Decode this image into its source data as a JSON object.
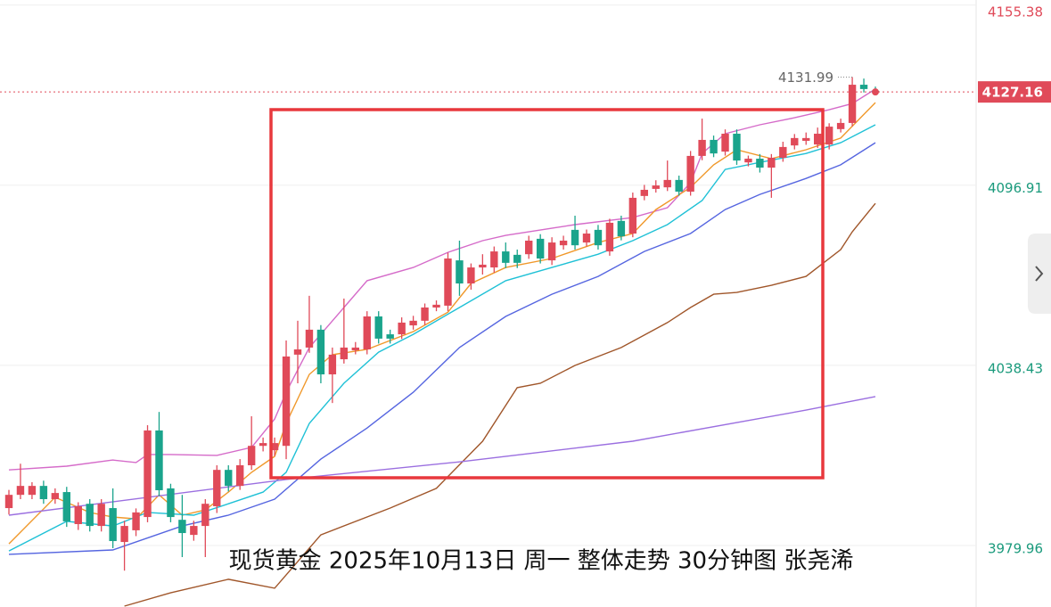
{
  "chart_data": {
    "type": "candlestick",
    "caption": "现货黄金 2025年10月13日 周一  整体走势 30分钟图 张尧浠",
    "up_color": "#e04a59",
    "down_color": "#1aa48c",
    "ylim": [
      3960,
      4157
    ],
    "yticks": [
      3979.96,
      4038.43,
      4096.91,
      4155.38
    ],
    "grid": true,
    "last_price": 4127.16,
    "open": [
      3992.1,
      3996.4,
      3996.4,
      3999.3,
      3995.0,
      3997.3,
      3986.9,
      3993.5,
      3986.3,
      3992.1,
      3981.1,
      3984.9,
      3989.2,
      4017.3,
      3998.5,
      3988.3,
      3983.4,
      3986.3,
      3992.7,
      4004.5,
      3999.3,
      4006.0,
      4012.3,
      4010.9,
      4012.3,
      4041.9,
      4044.2,
      4050.0,
      4035.5,
      4040.4,
      4043.3,
      4043.6,
      4054.3,
      4048.5,
      4048.5,
      4051.4,
      4052.9,
      4057.2,
      4057.8,
      4072.5,
      4065.0,
      4070.2,
      4070.2,
      4075.4,
      4074.3,
      4074.5,
      4079.5,
      4072.5,
      4077.4,
      4082.4,
      4078.3,
      4082.4,
      4075.4,
      4085.3,
      4081.2,
      4093.4,
      4095.7,
      4096.2,
      4098.6,
      4094.8,
      4106.4,
      4111.6,
      4107.8,
      4113.6,
      4104.3,
      4105.5,
      4102.6,
      4105.8,
      4109.8,
      4111.3,
      4110.1,
      4110.1,
      4115.1,
      4117.1,
      4129.5,
      4127.5
    ],
    "high": [
      3998.0,
      4006.5,
      4000.5,
      4001.0,
      3998.5,
      3999.0,
      3994.0,
      3995.0,
      3995.0,
      3998.5,
      3988.0,
      3992.0,
      4019.0,
      4023.3,
      4000.0,
      3996.4,
      3988.0,
      3995.0,
      4006.0,
      4006.0,
      4008.0,
      4021.9,
      4015.0,
      4015.0,
      4046.5,
      4052.9,
      4061.0,
      4051.5,
      4044.2,
      4060.1,
      4046.0,
      4056.0,
      4056.0,
      4050.0,
      4054.0,
      4054.5,
      4058.5,
      4059.5,
      4075.0,
      4078.9,
      4071.5,
      4074.5,
      4077.0,
      4078.3,
      4076.0,
      4080.5,
      4081.0,
      4080.0,
      4080.5,
      4087.0,
      4082.5,
      4084.0,
      4086.0,
      4087.0,
      4094.5,
      4097.0,
      4098.5,
      4104.9,
      4100.0,
      4108.0,
      4118.5,
      4113.0,
      4115.0,
      4115.0,
      4106.5,
      4107.0,
      4107.0,
      4111.0,
      4113.5,
      4114.0,
      4115.6,
      4117.0,
      4118.5,
      4131.99,
      4131.5,
      4128.9
    ],
    "low": [
      3990.0,
      3995.0,
      3995.0,
      3993.5,
      3993.5,
      3986.0,
      3985.0,
      3984.5,
      3984.5,
      3979.1,
      3971.8,
      3983.0,
      3987.5,
      3996.0,
      3987.5,
      3976.2,
      3981.5,
      3976.2,
      3990.5,
      3997.5,
      3998.0,
      4004.5,
      4010.5,
      4009.0,
      4008.0,
      4032.6,
      4042.5,
      4032.6,
      4026.2,
      4039.0,
      4042.0,
      4042.0,
      4045.5,
      4045.5,
      4047.0,
      4050.0,
      4051.5,
      4056.0,
      4056.0,
      4061.0,
      4063.0,
      4067.9,
      4068.5,
      4070.0,
      4070.0,
      4073.0,
      4071.5,
      4071.0,
      4076.0,
      4076.0,
      4077.0,
      4076.0,
      4074.0,
      4079.0,
      4080.0,
      4092.0,
      4094.5,
      4095.0,
      4093.5,
      4093.5,
      4105.0,
      4106.0,
      4106.5,
      4103.5,
      4103.0,
      4101.0,
      4092.8,
      4104.5,
      4108.5,
      4110.0,
      4109.0,
      4108.5,
      4114.0,
      4116.0,
      4127.0,
      4126.5
    ],
    "close": [
      3996.4,
      3999.3,
      3999.3,
      3995.0,
      3997.0,
      3987.8,
      3992.7,
      3986.3,
      3993.5,
      3981.4,
      3986.3,
      3990.7,
      4017.3,
      3997.9,
      3989.2,
      3984.0,
      3986.3,
      3993.5,
      4004.5,
      3999.3,
      4006.0,
      4012.3,
      4013.2,
      4013.2,
      4041.3,
      4043.6,
      4050.0,
      4035.5,
      4041.9,
      4044.2,
      4044.2,
      4054.3,
      4047.1,
      4047.1,
      4052.3,
      4052.9,
      4057.2,
      4058.1,
      4073.1,
      4065.0,
      4070.2,
      4071.1,
      4075.4,
      4071.7,
      4071.7,
      4078.9,
      4073.1,
      4078.3,
      4078.9,
      4077.4,
      4081.2,
      4077.4,
      4084.7,
      4080.3,
      4092.8,
      4095.4,
      4096.8,
      4098.6,
      4094.8,
      4106.4,
      4111.6,
      4107.2,
      4113.6,
      4104.9,
      4105.5,
      4102.6,
      4105.8,
      4109.3,
      4112.2,
      4112.2,
      4113.6,
      4115.9,
      4117.1,
      4129.5,
      4128.1,
      4127.16
    ],
    "lines": [
      {
        "color": "#d56bc9",
        "x": [
          1,
          6,
          10,
          12,
          13,
          15,
          19,
          22,
          24,
          25,
          27,
          30,
          32,
          36,
          39,
          42,
          44,
          50,
          55,
          58,
          60,
          61,
          63,
          66,
          69,
          72,
          74,
          76
        ],
        "values": [
          4004.5,
          4005.7,
          4007.7,
          4006.9,
          4009.5,
          4009.5,
          4009.2,
          4011.8,
          4021.0,
          4029.7,
          4044.2,
          4057.2,
          4065.9,
          4070.2,
          4075.1,
          4078.9,
          4080.6,
          4084.1,
          4086.4,
          4089.6,
          4097.7,
          4107.2,
          4113.6,
          4116.5,
          4118.8,
          4121.4,
          4123.4,
          4128.1
        ]
      },
      {
        "color": "#f0982a",
        "x": [
          1,
          5,
          8,
          10,
          12,
          14,
          16,
          18,
          20,
          22,
          24,
          25,
          27,
          29,
          32,
          36,
          39,
          41,
          44,
          48,
          52,
          55,
          57,
          60,
          62,
          64,
          67,
          70,
          73,
          76
        ],
        "values": [
          3980.5,
          3995.6,
          3990.7,
          3989.2,
          3988.6,
          3996.4,
          3989.8,
          3991.5,
          3997.3,
          4003.7,
          4008.9,
          4019.6,
          4035.5,
          4041.9,
          4043.6,
          4049.4,
          4055.7,
          4065.0,
          4070.2,
          4073.1,
          4078.3,
          4081.2,
          4089.0,
          4096.2,
          4103.5,
          4108.4,
          4105.5,
          4108.4,
          4112.2,
          4123.7
        ]
      },
      {
        "color": "#1fc1d6",
        "x": [
          1,
          6,
          10,
          13,
          17,
          20,
          23,
          25,
          27,
          30,
          33,
          36,
          40,
          44,
          48,
          52,
          55,
          58,
          61,
          63,
          66,
          70,
          73,
          76
        ],
        "values": [
          3978.2,
          3987.8,
          3986.3,
          3990.7,
          3989.8,
          3993.5,
          3997.3,
          4003.7,
          4019.6,
          4032.6,
          4042.7,
          4048.5,
          4057.2,
          4065.9,
          4070.2,
          4074.5,
          4078.9,
          4084.1,
          4091.9,
          4102.0,
          4104.3,
          4107.2,
          4110.7,
          4116.5
        ]
      },
      {
        "color": "#5565e0",
        "x": [
          1,
          10,
          16,
          20,
          24,
          28,
          32,
          36,
          40,
          44,
          48,
          52,
          56,
          60,
          63,
          66,
          70,
          73,
          76
        ],
        "values": [
          3977.1,
          3978.5,
          3986.3,
          3989.8,
          3995.0,
          4008.0,
          4018.1,
          4029.7,
          4044.2,
          4054.3,
          4061.5,
          4067.3,
          4075.4,
          4081.2,
          4089.0,
          4093.9,
          4099.1,
          4103.5,
          4110.7
        ]
      },
      {
        "color": "#a0562a",
        "x": [
          11,
          15,
          20,
          24,
          28,
          34,
          38,
          42,
          45,
          47,
          50,
          54,
          58,
          60,
          62,
          64,
          67,
          70,
          73,
          74,
          76
        ],
        "values": [
          3960.3,
          3964.6,
          3969.0,
          3966.1,
          3983.4,
          3992.1,
          3998.5,
          4013.8,
          4031.2,
          4032.6,
          4038.4,
          4044.2,
          4052.3,
          4057.2,
          4061.5,
          4062.1,
          4064.4,
          4067.3,
          4076.0,
          4081.8,
          4091.0
        ]
      },
      {
        "color": "#9b6fe0",
        "x": [
          1,
          25,
          40,
          55,
          70,
          76
        ],
        "values": [
          3989.8,
          4001.4,
          4007.1,
          4013.8,
          4023.9,
          4028.3
        ]
      }
    ]
  }
}
